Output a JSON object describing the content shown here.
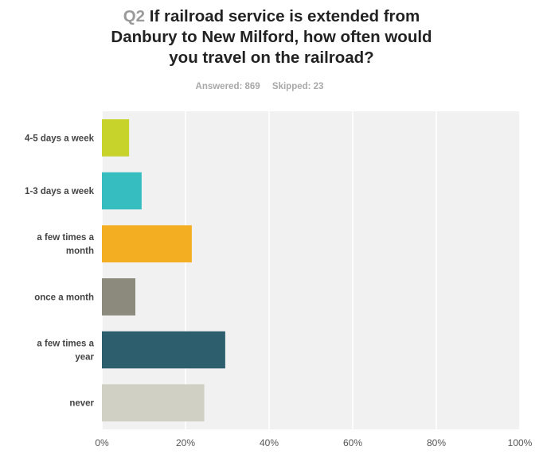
{
  "question": {
    "number": "Q2",
    "text_line1": "If railroad service is extended from",
    "text_line2": "Danbury to New Milford, how often would",
    "text_line3": "you travel on the railroad?"
  },
  "stats": {
    "answered": "Answered: 869",
    "skipped": "Skipped: 23"
  },
  "chart_data": {
    "type": "bar",
    "orientation": "horizontal",
    "categories": [
      [
        "4-5 days a week"
      ],
      [
        "1-3 days a week"
      ],
      [
        "a few times a",
        "month"
      ],
      [
        "once a month"
      ],
      [
        "a few times a",
        "year"
      ],
      [
        "never"
      ]
    ],
    "values": [
      6.5,
      9.5,
      21.5,
      8.0,
      29.5,
      24.5
    ],
    "colors": [
      "#c7d22b",
      "#36bdbf",
      "#f3ae21",
      "#8c8a7c",
      "#2d5e6e",
      "#d1d0c5"
    ],
    "xlim": [
      0,
      100
    ],
    "xticks": [
      "0%",
      "20%",
      "40%",
      "60%",
      "80%",
      "100%"
    ],
    "grid": true,
    "plot_background": "#f1f1f1"
  }
}
